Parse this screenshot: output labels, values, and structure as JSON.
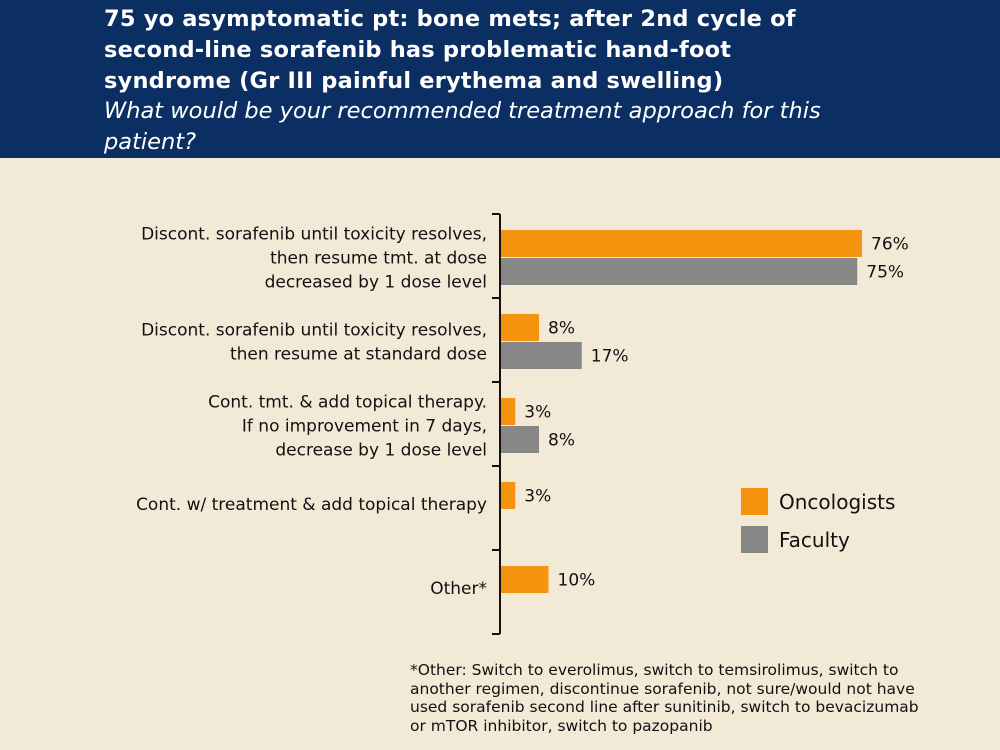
{
  "header": {
    "title_lines": [
      "75 yo asymptomatic pt: bone mets; after 2nd cycle of",
      "second-line sorafenib has problematic hand-foot",
      "syndrome (Gr III painful erythema and swelling)"
    ],
    "question_lines": [
      "What would be your recommended treatment approach for this",
      "patient?"
    ]
  },
  "chart_data": {
    "type": "bar",
    "orientation": "horizontal",
    "categories": [
      [
        "Discont. sorafenib until toxicity resolves,",
        "then resume tmt. at dose",
        "decreased by 1 dose level"
      ],
      [
        "Discont. sorafenib until toxicity resolves,",
        "then resume at standard dose"
      ],
      [
        "Cont. tmt. & add topical therapy.",
        "If no improvement in 7 days,",
        "decrease by 1 dose level"
      ],
      [
        "Cont. w/ treatment & add topical therapy"
      ],
      [
        "Other*"
      ]
    ],
    "series": [
      {
        "name": "Oncologists",
        "color": "#f7940f",
        "values": [
          76,
          8,
          3,
          3,
          10
        ],
        "labels": [
          "76%",
          "8%",
          "3%",
          "3%",
          "10%"
        ]
      },
      {
        "name": "Faculty",
        "color": "#878787",
        "values": [
          75,
          17,
          8,
          null,
          null
        ],
        "labels": [
          "75%",
          "17%",
          "8%",
          "",
          ""
        ]
      }
    ],
    "xlim": [
      0,
      100
    ],
    "grid": false,
    "legend_placement": "lower-right"
  },
  "footnote_lines": [
    "*Other: Switch to everolimus, switch to temsirolimus, switch to",
    "another regimen, discontinue sorafenib, not sure/would not have",
    "used sorafenib second line after sunitinib, switch to bevacizumab",
    "or mTOR inhibitor, switch to pazopanib"
  ]
}
